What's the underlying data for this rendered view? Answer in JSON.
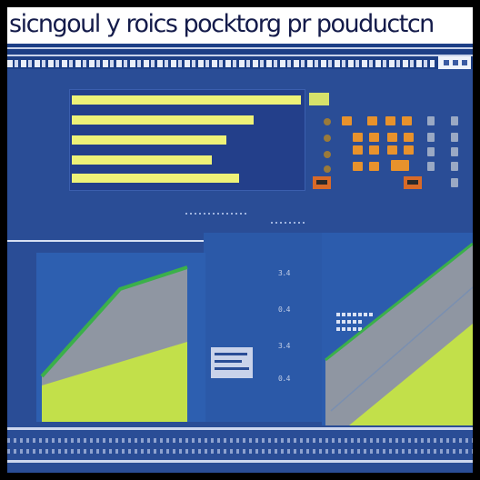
{
  "header": {
    "title": "sicngoul y roics pocktorg pr pouductcn"
  },
  "axis": {
    "labels": [
      "3.4",
      "0.4",
      "3.4",
      "0.4"
    ]
  },
  "colors": {
    "background": "#2a4d96",
    "bar": "#eef278",
    "area_gray": "#8f96a2",
    "area_green": "#c2e04a",
    "line_green": "#3bb04a",
    "kpi_orange": "#e8922c"
  }
}
